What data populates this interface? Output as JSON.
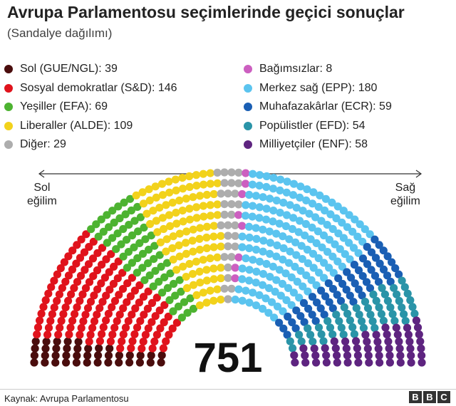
{
  "chart_data": {
    "type": "hemicycle",
    "title": "Avrupa Parlamentosu seçimlerinde geçici sonuçlar",
    "subtitle": "(Sandalye dağılımı)",
    "total": "751",
    "axis": {
      "left": [
        "Sol",
        "eğilim"
      ],
      "right": [
        "Sağ",
        "eğilim"
      ]
    },
    "series": [
      {
        "name": "Sol (GUE/NGL)",
        "value": 39,
        "color": "#4a0d0d"
      },
      {
        "name": "Sosyal demokratlar (S&D)",
        "value": 146,
        "color": "#e0131c"
      },
      {
        "name": "Yeşiller (EFA)",
        "value": 69,
        "color": "#4db331"
      },
      {
        "name": "Liberaller (ALDE)",
        "value": 109,
        "color": "#f2d21b"
      },
      {
        "name": "Diğer",
        "value": 29,
        "color": "#adadad"
      },
      {
        "name": "Bağımsızlar",
        "value": 8,
        "color": "#cc5fc0"
      },
      {
        "name": "Merkez sağ (EPP)",
        "value": 180,
        "color": "#5bc4ef"
      },
      {
        "name": "Muhafazakârlar (ECR)",
        "value": 59,
        "color": "#1a5fb4"
      },
      {
        "name": "Popülistler (EFD)",
        "value": 54,
        "color": "#2a94a8"
      },
      {
        "name": "Milliyetçiler (ENF)",
        "value": 58,
        "color": "#5e2480"
      }
    ]
  },
  "legend": {
    "left": [
      {
        "label": "Sol (GUE/NGL): 39",
        "color": "#4a0d0d"
      },
      {
        "label": "Sosyal demokratlar (S&D): 146",
        "color": "#e0131c"
      },
      {
        "label": "Yeşiller (EFA): 69",
        "color": "#4db331"
      },
      {
        "label": "Liberaller (ALDE): 109",
        "color": "#f2d21b"
      },
      {
        "label": "Diğer: 29",
        "color": "#adadad"
      }
    ],
    "right": [
      {
        "label": "Bağımsızlar: 8",
        "color": "#cc5fc0"
      },
      {
        "label": "Merkez sağ (EPP): 180",
        "color": "#5bc4ef"
      },
      {
        "label": "Muhafazakârlar (ECR): 59",
        "color": "#1a5fb4"
      },
      {
        "label": "Popülistler (EFD): 54",
        "color": "#2a94a8"
      },
      {
        "label": "Milliyetçiler (ENF): 58",
        "color": "#5e2480"
      }
    ]
  },
  "footer": {
    "source": "Kaynak: Avrupa Parlamentosu",
    "logo": [
      "B",
      "B",
      "C"
    ]
  }
}
